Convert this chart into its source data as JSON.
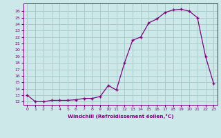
{
  "x": [
    0,
    1,
    2,
    3,
    4,
    5,
    6,
    7,
    8,
    9,
    10,
    11,
    12,
    13,
    14,
    15,
    16,
    17,
    18,
    19,
    20,
    21,
    22,
    23
  ],
  "y": [
    13.0,
    12.0,
    12.0,
    12.2,
    12.2,
    12.2,
    12.3,
    12.5,
    12.5,
    12.8,
    14.5,
    13.8,
    18.0,
    21.5,
    22.0,
    24.2,
    24.8,
    25.8,
    26.2,
    26.3,
    26.0,
    25.0,
    19.0,
    14.8
  ],
  "xlabel": "Windchill (Refroidissement éolien,°C)",
  "ylim": [
    11.5,
    27.2
  ],
  "xlim": [
    -0.5,
    23.5
  ],
  "yticks": [
    12,
    13,
    14,
    15,
    16,
    17,
    18,
    19,
    20,
    21,
    22,
    23,
    24,
    25,
    26
  ],
  "xticks": [
    0,
    1,
    2,
    3,
    4,
    5,
    6,
    7,
    8,
    9,
    10,
    11,
    12,
    13,
    14,
    15,
    16,
    17,
    18,
    19,
    20,
    21,
    22,
    23
  ],
  "line_color": "#800080",
  "marker_color": "#800080",
  "bg_color": "#cce8e8",
  "grid_color": "#aacccc",
  "axis_color": "#800080",
  "tick_color": "#800080",
  "xlabel_color": "#800080"
}
